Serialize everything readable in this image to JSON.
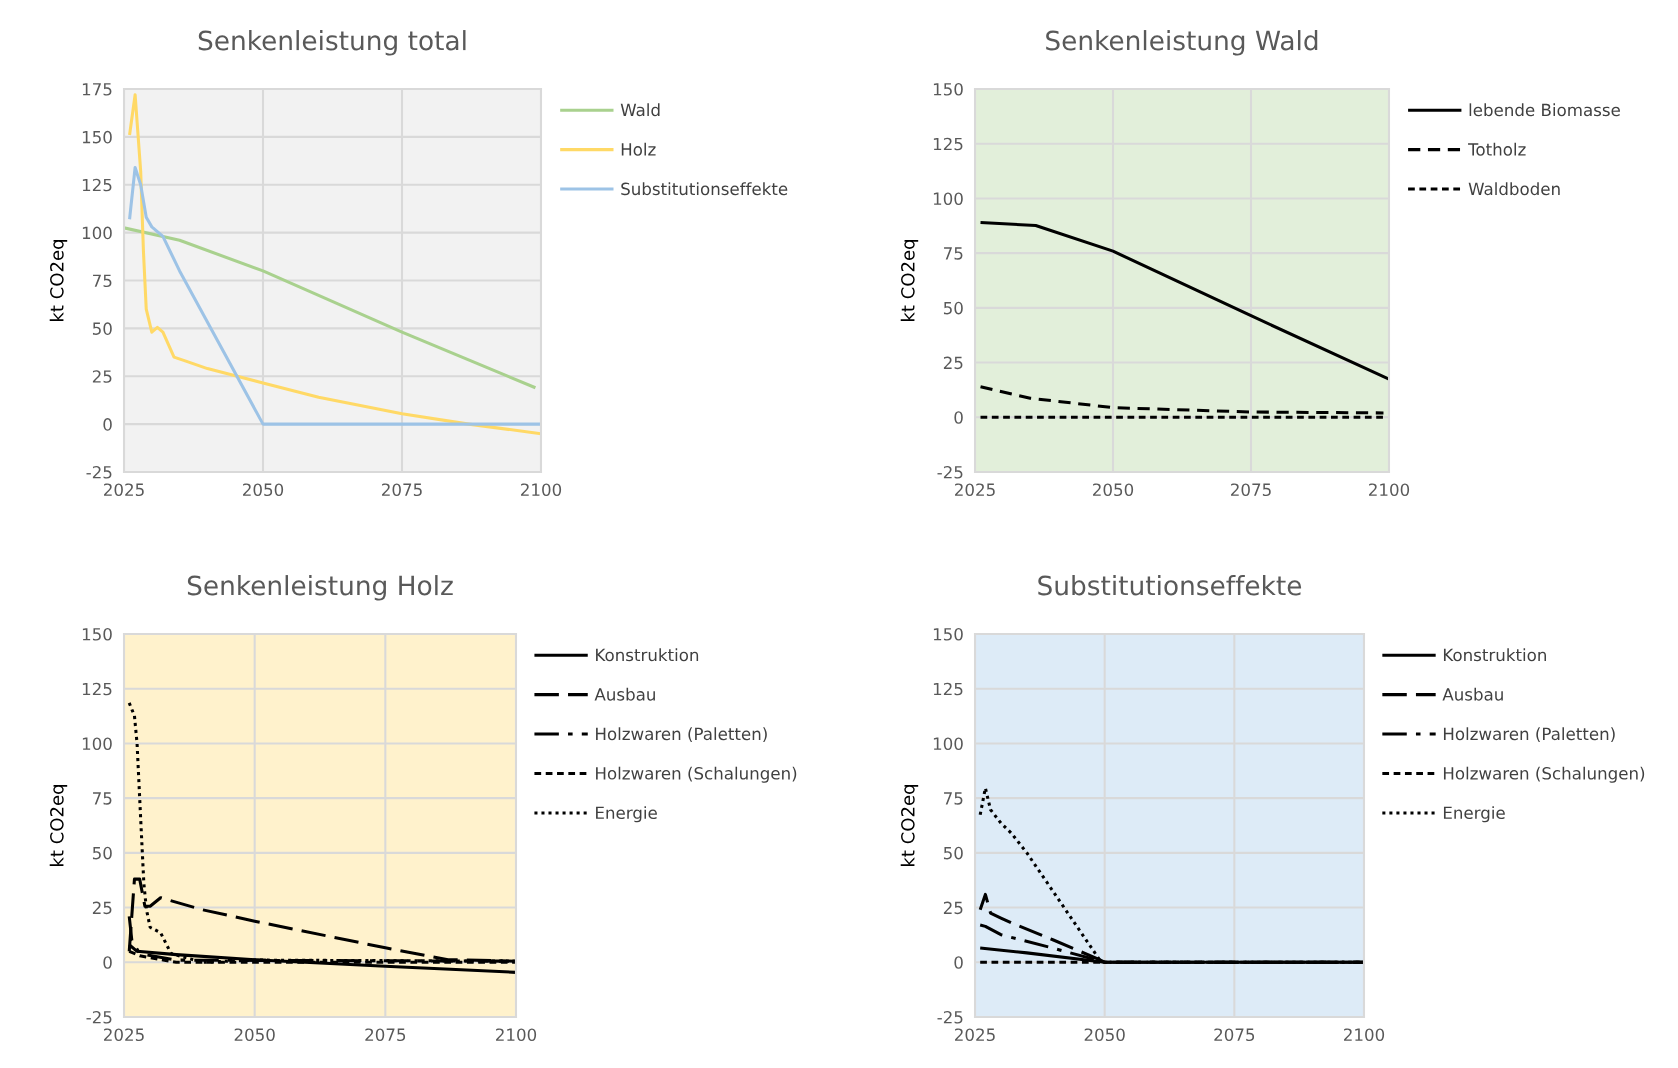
{
  "chart_data": [
    {
      "type": "line",
      "title": "Senkenleistung total",
      "ylabel": "kt CO2eq",
      "xlim": [
        2025,
        2100
      ],
      "xticks": [
        2025,
        2050,
        2075,
        2100
      ],
      "ylim": [
        -25,
        175
      ],
      "yticks": [
        -25,
        0,
        25,
        50,
        75,
        100,
        125,
        150,
        175
      ],
      "grid": true,
      "legend": "right",
      "series": [
        {
          "name": "Wald",
          "color": "#a9d18e",
          "line_style": "solid",
          "x": [
            2025,
            2035,
            2050,
            2075,
            2099
          ],
          "values": [
            102.5,
            96,
            80,
            48,
            19
          ]
        },
        {
          "name": "Holz",
          "color": "#ffd966",
          "line_style": "solid",
          "x": [
            2026,
            2027,
            2028,
            2028.5,
            2029,
            2030,
            2031,
            2032,
            2034,
            2036,
            2040,
            2050,
            2060,
            2075,
            2087,
            2100
          ],
          "values": [
            151,
            172,
            132,
            90,
            60,
            48,
            50.5,
            48,
            35,
            33,
            29,
            21.5,
            14,
            5.4,
            0,
            -5
          ]
        },
        {
          "name": "Substitutionseffekte",
          "color": "#9dc3e6",
          "line_style": "solid",
          "x": [
            2026,
            2027,
            2028,
            2029,
            2030,
            2032,
            2035,
            2050,
            2100
          ],
          "values": [
            107,
            134,
            125,
            108,
            103,
            98,
            80,
            0,
            0
          ]
        }
      ]
    },
    {
      "type": "line",
      "title": "Senkenleistung Wald",
      "ylabel": "kt CO2eq",
      "xlim": [
        2025,
        2100
      ],
      "xticks": [
        2025,
        2050,
        2075,
        2100
      ],
      "ylim": [
        -25,
        150
      ],
      "yticks": [
        -25,
        0,
        25,
        50,
        75,
        100,
        125,
        150
      ],
      "grid": true,
      "legend": "right",
      "series": [
        {
          "name": "lebende Biomasse",
          "color": "#000000",
          "line_style": "solid",
          "x": [
            2026,
            2036,
            2050,
            2075,
            2100
          ],
          "values": [
            89,
            87.6,
            75.9,
            46.4,
            17.4
          ]
        },
        {
          "name": "Totholz",
          "color": "#000000",
          "line_style": "dashed",
          "x": [
            2026,
            2035,
            2050,
            2075,
            2099
          ],
          "values": [
            14,
            8.7,
            4.4,
            2.4,
            2
          ]
        },
        {
          "name": "Waldboden",
          "color": "#000000",
          "line_style": "shortdash",
          "x": [
            2026,
            2099
          ],
          "values": [
            0,
            0
          ]
        }
      ]
    },
    {
      "type": "line",
      "title": "Senkenleistung Holz",
      "ylabel": "kt CO2eq",
      "xlim": [
        2025,
        2100
      ],
      "xticks": [
        2025,
        2050,
        2075,
        2100
      ],
      "ylim": [
        -25,
        150
      ],
      "yticks": [
        -25,
        0,
        25,
        50,
        75,
        100,
        125,
        150
      ],
      "grid": true,
      "legend": "right",
      "series": [
        {
          "name": "Konstruktion",
          "color": "#000000",
          "line_style": "solid",
          "x": [
            2026,
            2027.5,
            2035,
            2050,
            2075,
            2100
          ],
          "values": [
            8,
            5,
            3.5,
            1.2,
            -1.8,
            -4.6
          ]
        },
        {
          "name": "Ausbau",
          "color": "#000000",
          "line_style": "longdash",
          "x": [
            2026,
            2027,
            2028,
            2029,
            2030,
            2032,
            2040,
            2050,
            2075,
            2087,
            2100
          ],
          "values": [
            5,
            38,
            38,
            25.6,
            25.6,
            29.5,
            24,
            18.8,
            6.6,
            1.2,
            0.5
          ]
        },
        {
          "name": "Holzwaren (Paletten)",
          "color": "#000000",
          "line_style": "dashdot",
          "x": [
            2026,
            2026.5,
            2028,
            2035,
            2100
          ],
          "values": [
            21,
            10,
            4,
            1,
            0.5
          ]
        },
        {
          "name": "Holzwaren (Schalungen)",
          "color": "#000000",
          "line_style": "shortdash",
          "x": [
            2026,
            2028,
            2035,
            2100
          ],
          "values": [
            5,
            3,
            0,
            0
          ]
        },
        {
          "name": "Energie",
          "color": "#000000",
          "line_style": "dotted",
          "x": [
            2026,
            2027,
            2027.5,
            2028.2,
            2028.8,
            2029.3,
            2030,
            2032,
            2034,
            2040,
            2050,
            2100
          ],
          "values": [
            118.5,
            112.6,
            100,
            65,
            36,
            24,
            16,
            13.5,
            4,
            0,
            1,
            0.5
          ]
        }
      ]
    },
    {
      "type": "line",
      "title": "Substitutionseffekte",
      "ylabel": "kt CO2eq",
      "xlim": [
        2025,
        2100
      ],
      "xticks": [
        2025,
        2050,
        2075,
        2100
      ],
      "ylim": [
        -25,
        150
      ],
      "yticks": [
        -25,
        0,
        25,
        50,
        75,
        100,
        125,
        150
      ],
      "grid": true,
      "legend": "right",
      "series": [
        {
          "name": "Konstruktion",
          "color": "#000000",
          "line_style": "solid",
          "x": [
            2026,
            2035,
            2050,
            2100
          ],
          "values": [
            6.5,
            4.3,
            0,
            0
          ]
        },
        {
          "name": "Ausbau",
          "color": "#000000",
          "line_style": "longdash",
          "x": [
            2026,
            2027,
            2028,
            2030,
            2032,
            2040,
            2049,
            2050,
            2100
          ],
          "values": [
            24,
            31,
            22.5,
            20.2,
            18,
            10.3,
            1.2,
            0,
            0
          ]
        },
        {
          "name": "Holzwaren (Paletten)",
          "color": "#000000",
          "line_style": "dashdot",
          "x": [
            2026,
            2027,
            2030,
            2040,
            2050,
            2100
          ],
          "values": [
            17,
            16.4,
            12.6,
            6.5,
            0,
            0
          ]
        },
        {
          "name": "Holzwaren (Schalungen)",
          "color": "#000000",
          "line_style": "shortdash",
          "x": [
            2026,
            2050,
            2100
          ],
          "values": [
            0,
            0,
            0
          ]
        },
        {
          "name": "Energie",
          "color": "#000000",
          "line_style": "dotted",
          "x": [
            2026,
            2027,
            2028,
            2030,
            2032,
            2035,
            2049,
            2050,
            2100
          ],
          "values": [
            67.4,
            79.6,
            69.7,
            63.6,
            59,
            50,
            1.2,
            0,
            0
          ]
        }
      ]
    }
  ]
}
